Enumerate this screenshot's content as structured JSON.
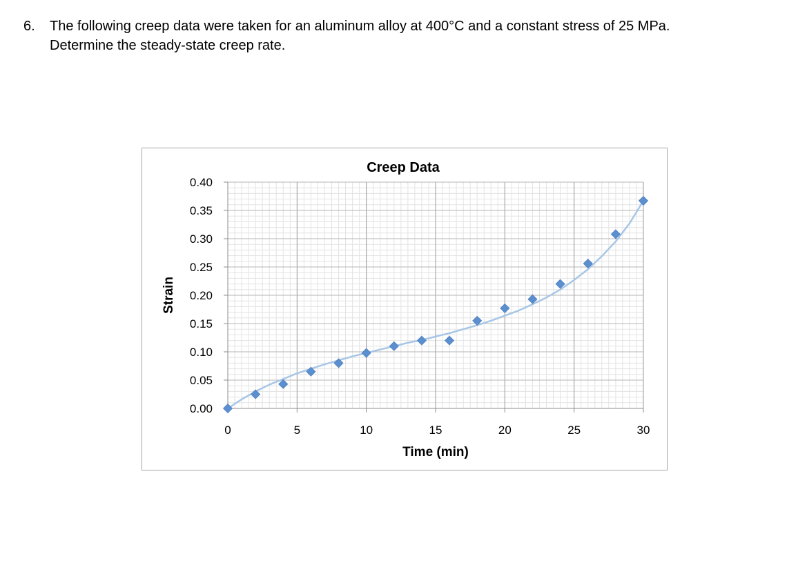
{
  "question": {
    "number": "6.",
    "line1": "The following creep data were taken for an aluminum alloy at 400°C and a constant stress of 25 MPa.",
    "line2": "Determine the steady-state creep rate."
  },
  "chart_data": {
    "type": "scatter",
    "title": "Creep Data",
    "xlabel": "Time (min)",
    "ylabel": "Strain",
    "xlim": [
      0,
      30
    ],
    "ylim": [
      0,
      0.4
    ],
    "x_ticks": [
      "0",
      "5",
      "10",
      "15",
      "20",
      "25",
      "30"
    ],
    "y_ticks": [
      "0.00",
      "0.05",
      "0.10",
      "0.15",
      "0.20",
      "0.25",
      "0.30",
      "0.35",
      "0.40"
    ],
    "grid": true,
    "legend": "none",
    "marker": "diamond",
    "marker_color": "#5b8fcf",
    "trend_color": "#a7c6e6",
    "series": [
      {
        "x": [
          0,
          2,
          4,
          6,
          8,
          10,
          12,
          14,
          16,
          18,
          20,
          22,
          24,
          26,
          28,
          30
        ],
        "y": [
          0.0,
          0.025,
          0.043,
          0.065,
          0.08,
          0.098,
          0.11,
          0.12,
          0.12,
          0.155,
          0.177,
          0.193,
          0.22,
          0.256,
          0.308,
          0.367
        ]
      }
    ],
    "trendline": {
      "x": [
        0,
        1,
        2,
        3,
        4,
        5,
        6,
        7,
        8,
        9,
        10,
        11,
        12,
        13,
        14,
        15,
        16,
        17,
        18,
        19,
        20,
        21,
        22,
        23,
        24,
        25,
        26,
        27,
        28,
        29,
        30
      ],
      "y": [
        0.0,
        0.016,
        0.03,
        0.042,
        0.052,
        0.062,
        0.07,
        0.078,
        0.085,
        0.092,
        0.098,
        0.104,
        0.11,
        0.116,
        0.121,
        0.127,
        0.133,
        0.14,
        0.147,
        0.155,
        0.164,
        0.173,
        0.184,
        0.196,
        0.21,
        0.227,
        0.246,
        0.269,
        0.295,
        0.327,
        0.367
      ]
    }
  }
}
